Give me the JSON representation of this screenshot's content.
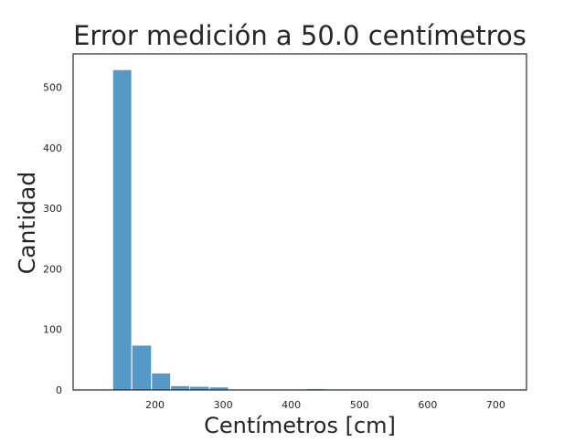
{
  "chart_data": {
    "type": "histogram",
    "title": "Error medición a 50.0 centímetros",
    "xlabel": "Centímetros [cm]",
    "ylabel": "Cantidad",
    "xlim": [
      80,
      745
    ],
    "ylim": [
      0,
      555
    ],
    "xticks": [
      200,
      300,
      400,
      500,
      600,
      700
    ],
    "yticks": [
      0,
      100,
      200,
      300,
      400,
      500
    ],
    "grid": false,
    "bar_color": "#5799c6",
    "bins": [
      {
        "x0": 138,
        "x1": 166,
        "count": 529
      },
      {
        "x0": 166,
        "x1": 195,
        "count": 74
      },
      {
        "x0": 195,
        "x1": 223,
        "count": 28
      },
      {
        "x0": 223,
        "x1": 251,
        "count": 7
      },
      {
        "x0": 251,
        "x1": 280,
        "count": 6
      },
      {
        "x0": 280,
        "x1": 308,
        "count": 5
      },
      {
        "x0": 308,
        "x1": 337,
        "count": 1
      },
      {
        "x0": 337,
        "x1": 365,
        "count": 1
      },
      {
        "x0": 365,
        "x1": 393,
        "count": 1
      },
      {
        "x0": 393,
        "x1": 422,
        "count": 1
      },
      {
        "x0": 422,
        "x1": 450,
        "count": 2
      },
      {
        "x0": 450,
        "x1": 478,
        "count": 1
      },
      {
        "x0": 478,
        "x1": 507,
        "count": 0
      },
      {
        "x0": 507,
        "x1": 535,
        "count": 1
      },
      {
        "x0": 535,
        "x1": 564,
        "count": 0
      },
      {
        "x0": 564,
        "x1": 592,
        "count": 1
      },
      {
        "x0": 592,
        "x1": 620,
        "count": 0
      },
      {
        "x0": 620,
        "x1": 649,
        "count": 0
      },
      {
        "x0": 649,
        "x1": 677,
        "count": 0
      },
      {
        "x0": 677,
        "x1": 705,
        "count": 1
      }
    ]
  }
}
